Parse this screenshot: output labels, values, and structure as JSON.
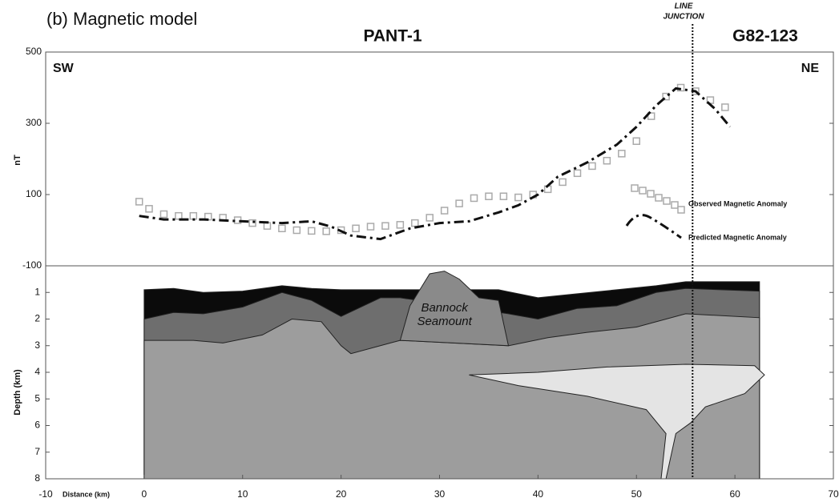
{
  "chart_data": [
    {
      "type": "line",
      "title": "(b) Magnetic model",
      "profiles": [
        "PANT-1",
        "G82-123"
      ],
      "sw": "SW",
      "ne": "NE",
      "junction_label": [
        "LINE",
        "JUNCTION"
      ],
      "junction_x": 55.7,
      "ylabel": "nT",
      "xlim": [
        -10,
        70
      ],
      "ylim": [
        -100,
        500
      ],
      "yticks": [
        500,
        300,
        100,
        -100
      ],
      "series": [
        {
          "name": "Observed Magnetic Anomaly",
          "color": "#aaaaaa",
          "marker": "square",
          "x": [
            -0.5,
            0.5,
            2,
            3.5,
            5,
            6.5,
            8,
            9.5,
            11,
            12.5,
            14,
            15.5,
            17,
            18.5,
            20,
            21.5,
            23,
            24.5,
            26,
            27.5,
            29,
            30.5,
            32,
            33.5,
            35,
            36.5,
            38,
            39.5,
            41,
            42.5,
            44,
            45.5,
            47,
            48.5,
            50,
            51.5,
            53,
            54.5,
            56,
            57.5,
            59
          ],
          "values": [
            80,
            60,
            45,
            40,
            40,
            38,
            35,
            28,
            20,
            12,
            5,
            0,
            -2,
            -3,
            0,
            5,
            10,
            12,
            15,
            20,
            35,
            55,
            75,
            90,
            95,
            95,
            92,
            100,
            115,
            135,
            160,
            180,
            195,
            215,
            250,
            320,
            375,
            400,
            390,
            365,
            345
          ]
        },
        {
          "name": "Predicted Magnetic Anomaly",
          "color": "#111111",
          "marker": "dashdot",
          "x": [
            -0.5,
            2,
            6,
            10,
            14,
            17,
            19,
            21,
            24,
            27,
            30,
            33,
            36,
            38,
            40,
            42,
            45,
            48,
            50,
            52,
            54,
            56,
            58,
            59.5
          ],
          "values": [
            40,
            30,
            30,
            25,
            20,
            25,
            10,
            -15,
            -25,
            5,
            20,
            25,
            50,
            70,
            100,
            150,
            190,
            240,
            290,
            350,
            398,
            390,
            340,
            290
          ]
        }
      ]
    },
    {
      "type": "section",
      "ylabel": "Depth (km)",
      "xlabel": "Distance (km)",
      "seamount": [
        "Bannock",
        "Seamount"
      ],
      "xlim": [
        -10,
        70
      ],
      "xticks": [
        -10,
        0,
        10,
        20,
        30,
        40,
        50,
        60,
        70
      ],
      "ylim": [
        0,
        8
      ],
      "yticks": [
        1,
        2,
        3,
        4,
        5,
        6,
        7,
        8
      ],
      "layers": [
        {
          "color": "#0b0b0b",
          "closed": false,
          "x": [
            0,
            3,
            6,
            10,
            14,
            17,
            20,
            26,
            36,
            40,
            44,
            48,
            52,
            55,
            62.5
          ],
          "depth": [
            0.9,
            0.85,
            1.0,
            0.95,
            0.75,
            0.85,
            0.9,
            0.9,
            0.9,
            1.2,
            1.05,
            0.9,
            0.75,
            0.6,
            0.6
          ]
        },
        {
          "color": "#6e6e6e",
          "closed": false,
          "x": [
            0,
            3,
            6,
            10,
            14,
            17,
            20,
            24,
            26,
            37,
            40,
            44,
            48,
            52,
            55,
            62.5
          ],
          "depth": [
            2.0,
            1.75,
            1.8,
            1.55,
            1.0,
            1.3,
            1.9,
            1.2,
            1.2,
            1.8,
            2.0,
            1.6,
            1.5,
            1.0,
            0.85,
            0.95
          ]
        },
        {
          "color": "#9d9d9d",
          "closed": false,
          "x": [
            0,
            5,
            8,
            12,
            15,
            18,
            20,
            21,
            25,
            26,
            37,
            41,
            45,
            50,
            55,
            62.5
          ],
          "depth": [
            2.8,
            2.8,
            2.9,
            2.6,
            2.0,
            2.1,
            3.0,
            3.3,
            2.9,
            2.8,
            3.0,
            2.7,
            2.5,
            2.3,
            1.8,
            1.95
          ]
        },
        {
          "color": "#8a8a8a",
          "closed": true,
          "x": [
            26,
            27,
            29,
            30.5,
            32,
            34,
            36,
            37
          ],
          "depth": [
            2.8,
            1.5,
            0.3,
            0.2,
            0.5,
            1.2,
            1.3,
            3.0
          ]
        },
        {
          "color": "#e4e4e4",
          "closed": true,
          "x": [
            33,
            40,
            47,
            55,
            62,
            63,
            61,
            57,
            55.5,
            54,
            53,
            52.5,
            53,
            51,
            45,
            38
          ],
          "depth": [
            4.1,
            4.0,
            3.8,
            3.7,
            3.75,
            4.1,
            4.8,
            5.3,
            5.9,
            6.3,
            8.0,
            8.0,
            6.3,
            5.4,
            4.9,
            4.5
          ]
        }
      ]
    }
  ]
}
